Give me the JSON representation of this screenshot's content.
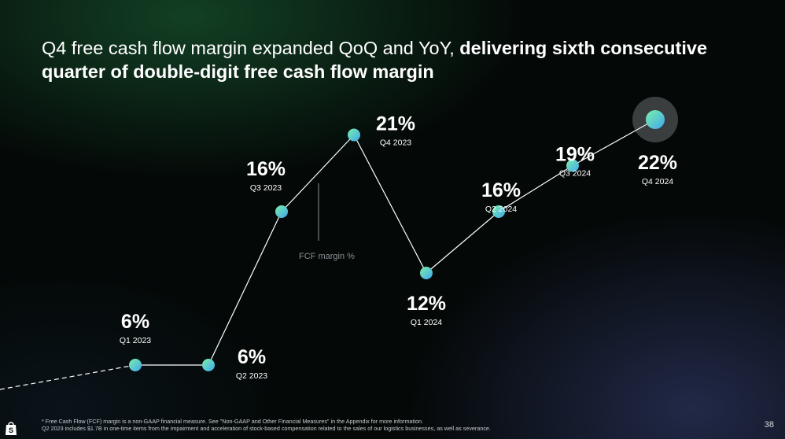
{
  "headline": {
    "regular": "Q4 free cash flow margin expanded QoQ and YoY, ",
    "bold": "delivering sixth consecutive quarter of double-digit free cash flow margin"
  },
  "chart_data": {
    "type": "line",
    "categories": [
      "Q1 2023",
      "Q2 2023",
      "Q3 2023",
      "Q4 2023",
      "Q1 2024",
      "Q2 2024",
      "Q3 2024",
      "Q4 2024"
    ],
    "series": [
      {
        "name": "FCF margin %",
        "values": [
          6,
          6,
          16,
          21,
          12,
          16,
          19,
          22
        ],
        "labels": [
          "6%",
          "6%",
          "16%",
          "21%",
          "12%",
          "16%",
          "19%",
          "22%"
        ]
      }
    ],
    "title": "",
    "xlabel": "",
    "ylabel": "",
    "ylim": [
      0,
      25
    ],
    "grid": false,
    "highlight": "Q4 2024",
    "colors": {
      "marker_start": "#7cf0a8",
      "marker_end": "#3fa8f0",
      "line": "#ffffff"
    }
  },
  "footnote": {
    "line1": "* Free Cash Flow (FCF) margin is a non-GAAP financial measure. See \"Non-GAAP and Other Financial Measures\" in the Appendix for more information.",
    "line2": "Q2 2023 includes $1.7B in one-time items from the impairment and acceleration of stock-based compensation related to the sales of our logistics businesses, as well as severance."
  },
  "page_number": "38",
  "logo_icon": "shopping-bag-icon"
}
